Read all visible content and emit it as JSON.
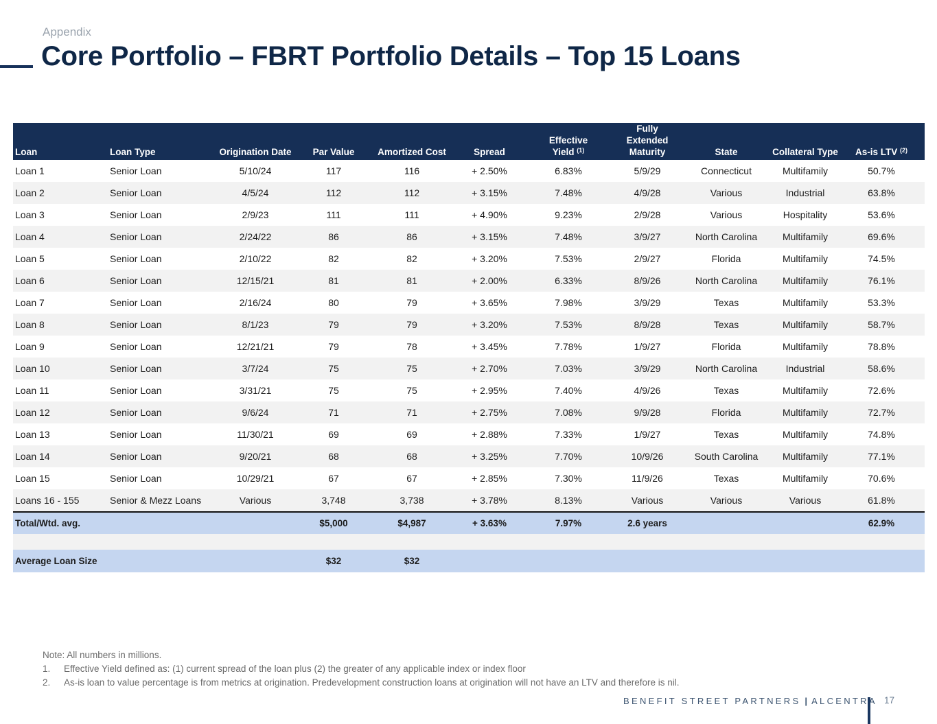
{
  "header": {
    "subtitle": "Appendix",
    "title": "Core Portfolio – FBRT Portfolio Details – Top 15 Loans"
  },
  "table": {
    "columns": [
      {
        "label": "Loan",
        "sup": ""
      },
      {
        "label": "Loan Type",
        "sup": ""
      },
      {
        "label": "Origination Date",
        "sup": ""
      },
      {
        "label": "Par Value",
        "sup": ""
      },
      {
        "label": "Amortized Cost",
        "sup": ""
      },
      {
        "label": "Spread",
        "sup": ""
      },
      {
        "label_line1": "Effective",
        "label": "Yield",
        "sup": "(1)"
      },
      {
        "label_line1": "Fully Extended",
        "label": "Maturity",
        "sup": ""
      },
      {
        "label": "State",
        "sup": ""
      },
      {
        "label": "Collateral Type",
        "sup": ""
      },
      {
        "label": "As-is LTV",
        "sup": "(2)"
      }
    ],
    "rows": [
      [
        "Loan 1",
        "Senior Loan",
        "5/10/24",
        "117",
        "116",
        "+ 2.50%",
        "6.83%",
        "5/9/29",
        "Connecticut",
        "Multifamily",
        "50.7%"
      ],
      [
        "Loan 2",
        "Senior Loan",
        "4/5/24",
        "112",
        "112",
        "+ 3.15%",
        "7.48%",
        "4/9/28",
        "Various",
        "Industrial",
        "63.8%"
      ],
      [
        "Loan 3",
        "Senior Loan",
        "2/9/23",
        "111",
        "111",
        "+ 4.90%",
        "9.23%",
        "2/9/28",
        "Various",
        "Hospitality",
        "53.6%"
      ],
      [
        "Loan 4",
        "Senior Loan",
        "2/24/22",
        "86",
        "86",
        "+ 3.15%",
        "7.48%",
        "3/9/27",
        "North Carolina",
        "Multifamily",
        "69.6%"
      ],
      [
        "Loan 5",
        "Senior Loan",
        "2/10/22",
        "82",
        "82",
        "+ 3.20%",
        "7.53%",
        "2/9/27",
        "Florida",
        "Multifamily",
        "74.5%"
      ],
      [
        "Loan 6",
        "Senior Loan",
        "12/15/21",
        "81",
        "81",
        "+ 2.00%",
        "6.33%",
        "8/9/26",
        "North Carolina",
        "Multifamily",
        "76.1%"
      ],
      [
        "Loan 7",
        "Senior Loan",
        "2/16/24",
        "80",
        "79",
        "+ 3.65%",
        "7.98%",
        "3/9/29",
        "Texas",
        "Multifamily",
        "53.3%"
      ],
      [
        "Loan 8",
        "Senior Loan",
        "8/1/23",
        "79",
        "79",
        "+ 3.20%",
        "7.53%",
        "8/9/28",
        "Texas",
        "Multifamily",
        "58.7%"
      ],
      [
        "Loan 9",
        "Senior Loan",
        "12/21/21",
        "79",
        "78",
        "+ 3.45%",
        "7.78%",
        "1/9/27",
        "Florida",
        "Multifamily",
        "78.8%"
      ],
      [
        "Loan 10",
        "Senior Loan",
        "3/7/24",
        "75",
        "75",
        "+ 2.70%",
        "7.03%",
        "3/9/29",
        "North Carolina",
        "Industrial",
        "58.6%"
      ],
      [
        "Loan 11",
        "Senior Loan",
        "3/31/21",
        "75",
        "75",
        "+ 2.95%",
        "7.40%",
        "4/9/26",
        "Texas",
        "Multifamily",
        "72.6%"
      ],
      [
        "Loan 12",
        "Senior Loan",
        "9/6/24",
        "71",
        "71",
        "+ 2.75%",
        "7.08%",
        "9/9/28",
        "Florida",
        "Multifamily",
        "72.7%"
      ],
      [
        "Loan 13",
        "Senior Loan",
        "11/30/21",
        "69",
        "69",
        "+ 2.88%",
        "7.33%",
        "1/9/27",
        "Texas",
        "Multifamily",
        "74.8%"
      ],
      [
        "Loan 14",
        "Senior Loan",
        "9/20/21",
        "68",
        "68",
        "+ 3.25%",
        "7.70%",
        "10/9/26",
        "South Carolina",
        "Multifamily",
        "77.1%"
      ],
      [
        "Loan 15",
        "Senior Loan",
        "10/29/21",
        "67",
        "67",
        "+ 2.85%",
        "7.30%",
        "11/9/26",
        "Texas",
        "Multifamily",
        "70.6%"
      ],
      [
        "Loans 16 - 155",
        "Senior & Mezz Loans",
        "Various",
        "3,748",
        "3,738",
        "+ 3.78%",
        "8.13%",
        "Various",
        "Various",
        "Various",
        "61.8%"
      ]
    ],
    "total": [
      "Total/Wtd. avg.",
      "",
      "",
      "$5,000",
      "$4,987",
      "+ 3.63%",
      "7.97%",
      "2.6 years",
      "",
      "",
      "62.9%"
    ],
    "average": [
      "Average Loan Size",
      "",
      "",
      "$32",
      "$32",
      "",
      "",
      "",
      "",
      "",
      ""
    ]
  },
  "notes": {
    "note": "Note: All numbers in millions.",
    "items": [
      {
        "num": "1.",
        "text": "Effective Yield defined as: (1) current spread of the loan plus (2) the greater of any applicable index or index floor"
      },
      {
        "num": "2.",
        "text": "As-is loan to value percentage is from metrics at origination. Predevelopment construction loans at origination will not have an LTV and therefore is nil."
      }
    ]
  },
  "footer": {
    "brand_left": "BENEFIT STREET PARTNERS",
    "brand_sep": "|",
    "brand_right": "ALCENTRA",
    "page_number": "17"
  },
  "colors": {
    "header_bg": "#162f56",
    "title_color": "#0f2747",
    "total_bg": "#c5d6f0",
    "stripe_bg": "#f2f2f2"
  }
}
